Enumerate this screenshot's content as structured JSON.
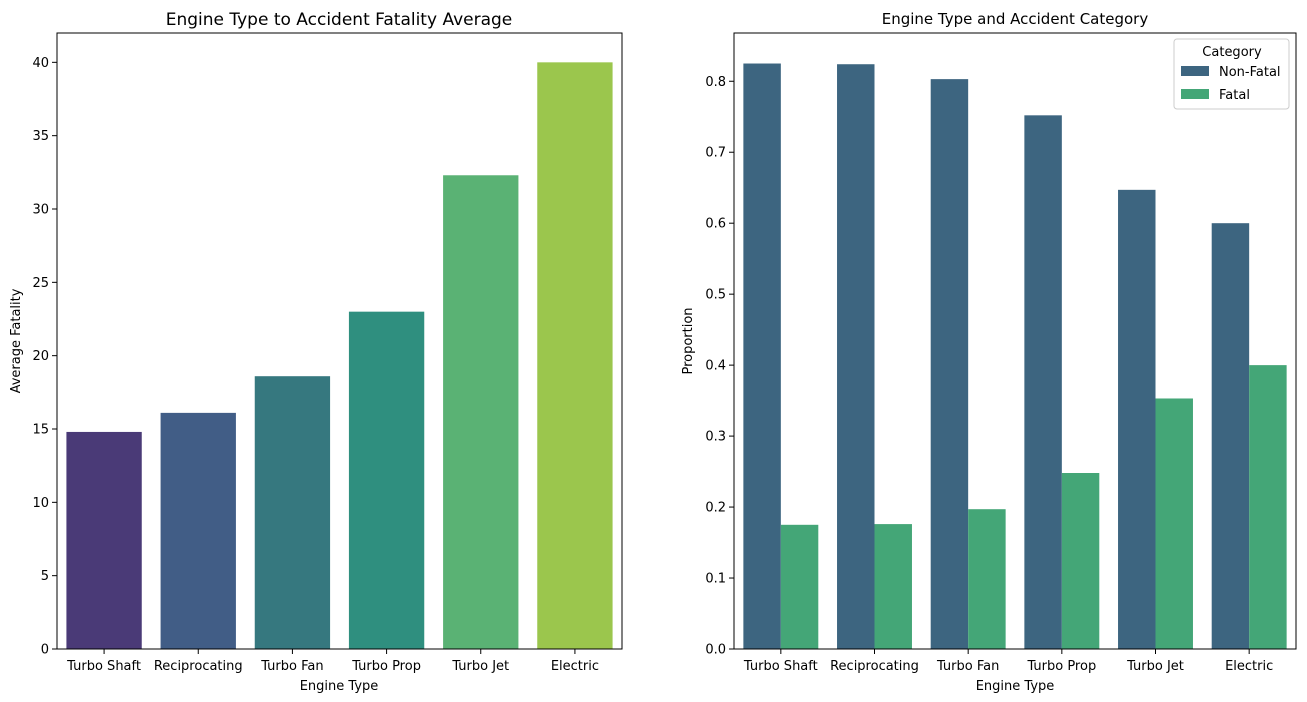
{
  "chart_data": [
    {
      "type": "bar",
      "title": "Engine Type to Accident Fatality Average",
      "xlabel": "Engine Type",
      "ylabel": "Average Fatality",
      "categories": [
        "Turbo Shaft",
        "Reciprocating",
        "Turbo Fan",
        "Turbo Prop",
        "Turbo Jet",
        "Electric"
      ],
      "values": [
        14.8,
        16.1,
        18.6,
        23.0,
        32.3,
        40.0
      ],
      "colors": [
        "#4a3a77",
        "#415d86",
        "#36787f",
        "#2f8f7f",
        "#5ab274",
        "#9bc64d"
      ],
      "ylim": [
        0,
        42
      ],
      "yticks": [
        "0",
        "5",
        "10",
        "15",
        "20",
        "25",
        "30",
        "35",
        "40"
      ],
      "grid": false
    },
    {
      "type": "bar",
      "title": "Engine Type and Accident Category",
      "xlabel": "Engine Type",
      "ylabel": "Proportion",
      "categories": [
        "Turbo Shaft",
        "Reciprocating",
        "Turbo Fan",
        "Turbo Prop",
        "Turbo Jet",
        "Electric"
      ],
      "series": [
        {
          "name": "Non-Fatal",
          "color": "#3d6580",
          "values": [
            0.825,
            0.824,
            0.803,
            0.752,
            0.647,
            0.6
          ]
        },
        {
          "name": "Fatal",
          "color": "#44a677",
          "values": [
            0.175,
            0.176,
            0.197,
            0.248,
            0.353,
            0.4
          ]
        }
      ],
      "ylim": [
        0,
        0.868
      ],
      "yticks": [
        "0.0",
        "0.1",
        "0.2",
        "0.3",
        "0.4",
        "0.5",
        "0.6",
        "0.7",
        "0.8"
      ],
      "legend": {
        "title": "Category",
        "placement": "top-right"
      },
      "grid": false
    }
  ]
}
